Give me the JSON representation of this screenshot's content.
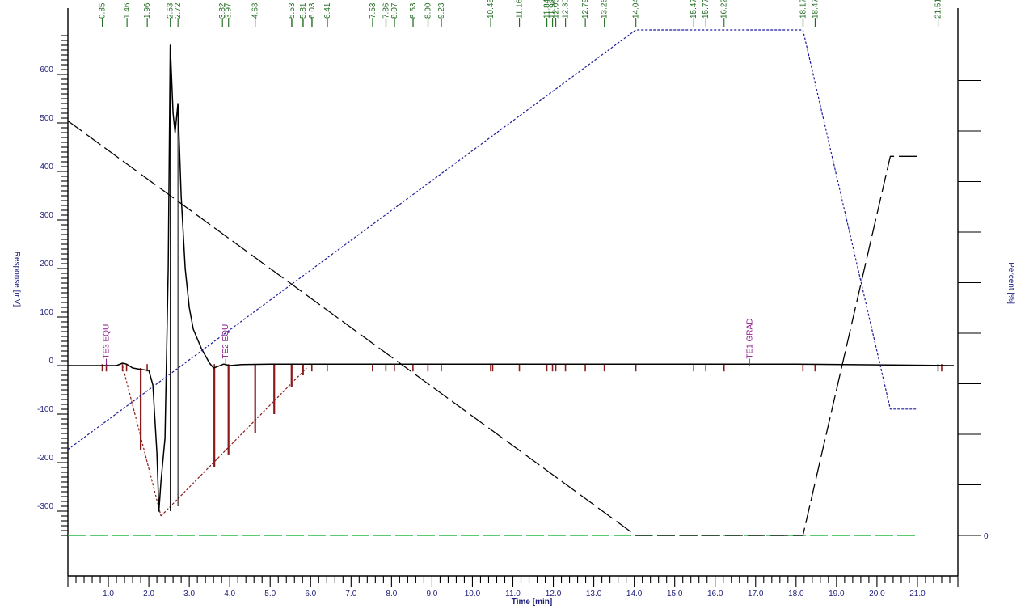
{
  "chart_data": {
    "type": "line",
    "title": "",
    "xlabel": "Time [min]",
    "ylabel": "Response [mV]",
    "y2label": "Percent [%]",
    "xlim": [
      0,
      22
    ],
    "ylim": [
      -350,
      680
    ],
    "y2lim": [
      0,
      100
    ],
    "x_ticks": [
      1.0,
      2.0,
      3.0,
      4.0,
      5.0,
      6.0,
      7.0,
      8.0,
      9.0,
      10.0,
      11.0,
      12.0,
      13.0,
      14.0,
      15.0,
      16.0,
      17.0,
      18.0,
      19.0,
      20.0,
      21.0
    ],
    "x_tick_labels": [
      "1.0",
      "2.0",
      "3.0",
      "4.0",
      "5.0",
      "6.0",
      "7.0",
      "8.0",
      "9.0",
      "10.0",
      "11.0",
      "12.0",
      "13.0",
      "14.0",
      "15.0",
      "16.0",
      "17.0",
      "18.0",
      "19.0",
      "20.0",
      "21.0"
    ],
    "y_ticks": [
      -300,
      -200,
      -100,
      0,
      100,
      200,
      300,
      400,
      500,
      600
    ],
    "y_tick_labels": [
      "-300",
      "-200",
      "-100",
      "0",
      "100",
      "200",
      "300",
      "400",
      "500",
      "600"
    ],
    "y2_ticks": [
      0,
      10,
      20,
      30,
      40,
      50,
      60,
      70,
      80,
      90
    ],
    "y2_tick_labels": [
      "0",
      "",
      "",
      "",
      "",
      "",
      "",
      "",
      "",
      ""
    ],
    "grid": false,
    "series": [
      {
        "style": "solid",
        "color": "#000000",
        "axis": "left",
        "x": [
          0,
          1.2,
          1.35,
          1.45,
          1.6,
          1.8,
          2.0,
          2.1,
          2.2,
          2.25,
          2.3,
          2.4,
          2.48,
          2.53,
          2.6,
          2.65,
          2.72,
          2.8,
          2.9,
          3.0,
          3.1,
          3.3,
          3.5,
          3.6,
          3.7,
          3.85,
          4.0,
          4.3,
          5.0,
          6.0,
          8.0,
          12.0,
          16.0,
          18.0,
          21.9
        ],
        "y": [
          0,
          0,
          5,
          3,
          -5,
          -8,
          -10,
          -40,
          -180,
          -300,
          -240,
          -150,
          200,
          660,
          520,
          480,
          540,
          350,
          200,
          120,
          75,
          35,
          5,
          -5,
          -2,
          3,
          0,
          2,
          3,
          3,
          3,
          3,
          3,
          3,
          0
        ]
      },
      {
        "style": "dashed",
        "color": "#000000",
        "axis": "right",
        "x": [
          0,
          14.04,
          18.17,
          20.33,
          21.0
        ],
        "y": [
          82,
          0,
          0,
          75,
          75
        ]
      },
      {
        "style": "dotted",
        "color": "#1c1c9a",
        "axis": "right",
        "x": [
          0,
          14.04,
          18.17,
          20.33,
          21.0
        ],
        "y": [
          17,
          100,
          100,
          25,
          25
        ]
      },
      {
        "style": "dashed",
        "color": "#22bb44",
        "axis": "right",
        "x": [
          0,
          21.0
        ],
        "y": [
          0,
          0
        ]
      }
    ],
    "baseline_segments": [
      {
        "x1": 1.35,
        "y1": 0,
        "x2": 2.3,
        "y2": -310
      },
      {
        "x1": 2.3,
        "y1": -310,
        "x2": 5.9,
        "y2": -5
      }
    ],
    "drop_lines": [
      {
        "x": 1.8,
        "y_top": -5,
        "y_bottom": -175
      },
      {
        "x": 2.53,
        "y_top": 660,
        "y_bottom": -300
      },
      {
        "x": 2.72,
        "y_top": 540,
        "y_bottom": -290
      },
      {
        "x": 3.62,
        "y_top": -5,
        "y_bottom": -210
      },
      {
        "x": 3.97,
        "y_top": 0,
        "y_bottom": -185
      },
      {
        "x": 4.63,
        "y_top": 2,
        "y_bottom": -140
      },
      {
        "x": 5.1,
        "y_top": 3,
        "y_bottom": -100
      },
      {
        "x": 5.53,
        "y_top": 3,
        "y_bottom": -45
      },
      {
        "x": 5.81,
        "y_top": 3,
        "y_bottom": -20
      }
    ],
    "peak_markers": [
      0.85,
      0.95,
      1.35,
      1.45,
      1.96,
      3.62,
      3.97,
      4.63,
      5.53,
      5.81,
      6.03,
      6.41,
      7.53,
      7.86,
      8.07,
      8.53,
      8.9,
      9.23,
      10.45,
      10.5,
      11.16,
      11.84,
      11.98,
      12.06,
      12.3,
      12.79,
      13.26,
      14.04,
      15.47,
      15.77,
      16.22,
      18.17,
      18.47,
      21.51,
      21.6
    ],
    "peak_labels": [
      {
        "x": 0.85,
        "text": "0.85"
      },
      {
        "x": 1.46,
        "text": "1.46"
      },
      {
        "x": 1.96,
        "text": "1.96"
      },
      {
        "x": 2.53,
        "text": "2.53"
      },
      {
        "x": 2.72,
        "text": "2.72"
      },
      {
        "x": 3.82,
        "text": "3.82"
      },
      {
        "x": 3.97,
        "text": "3.97"
      },
      {
        "x": 4.63,
        "text": "4.63"
      },
      {
        "x": 5.53,
        "text": "5.53"
      },
      {
        "x": 5.81,
        "text": "5.81"
      },
      {
        "x": 6.03,
        "text": "6.03"
      },
      {
        "x": 6.41,
        "text": "6.41"
      },
      {
        "x": 7.53,
        "text": "7.53"
      },
      {
        "x": 7.86,
        "text": "7.86"
      },
      {
        "x": 8.07,
        "text": "8.07"
      },
      {
        "x": 8.53,
        "text": "8.53"
      },
      {
        "x": 8.9,
        "text": "8.90"
      },
      {
        "x": 9.23,
        "text": "9.23"
      },
      {
        "x": 10.45,
        "text": "10.45"
      },
      {
        "x": 11.16,
        "text": "11.16"
      },
      {
        "x": 11.84,
        "text": "11.84"
      },
      {
        "x": 11.98,
        "text": "11.98"
      },
      {
        "x": 12.06,
        "text": "12.06"
      },
      {
        "x": 12.3,
        "text": "12.30"
      },
      {
        "x": 12.79,
        "text": "12.79"
      },
      {
        "x": 13.26,
        "text": "13.26"
      },
      {
        "x": 14.04,
        "text": "14.04"
      },
      {
        "x": 15.47,
        "text": "15.47"
      },
      {
        "x": 15.77,
        "text": "15.77"
      },
      {
        "x": 16.22,
        "text": "16.22"
      },
      {
        "x": 18.17,
        "text": "18.17"
      },
      {
        "x": 18.47,
        "text": "18.47"
      },
      {
        "x": 21.51,
        "text": "21.51"
      }
    ],
    "event_labels": [
      {
        "x": 0.95,
        "text": "TE3 EQU"
      },
      {
        "x": 3.9,
        "text": "TE2 EQU"
      },
      {
        "x": 16.85,
        "text": "TE1 GRAD"
      }
    ]
  }
}
